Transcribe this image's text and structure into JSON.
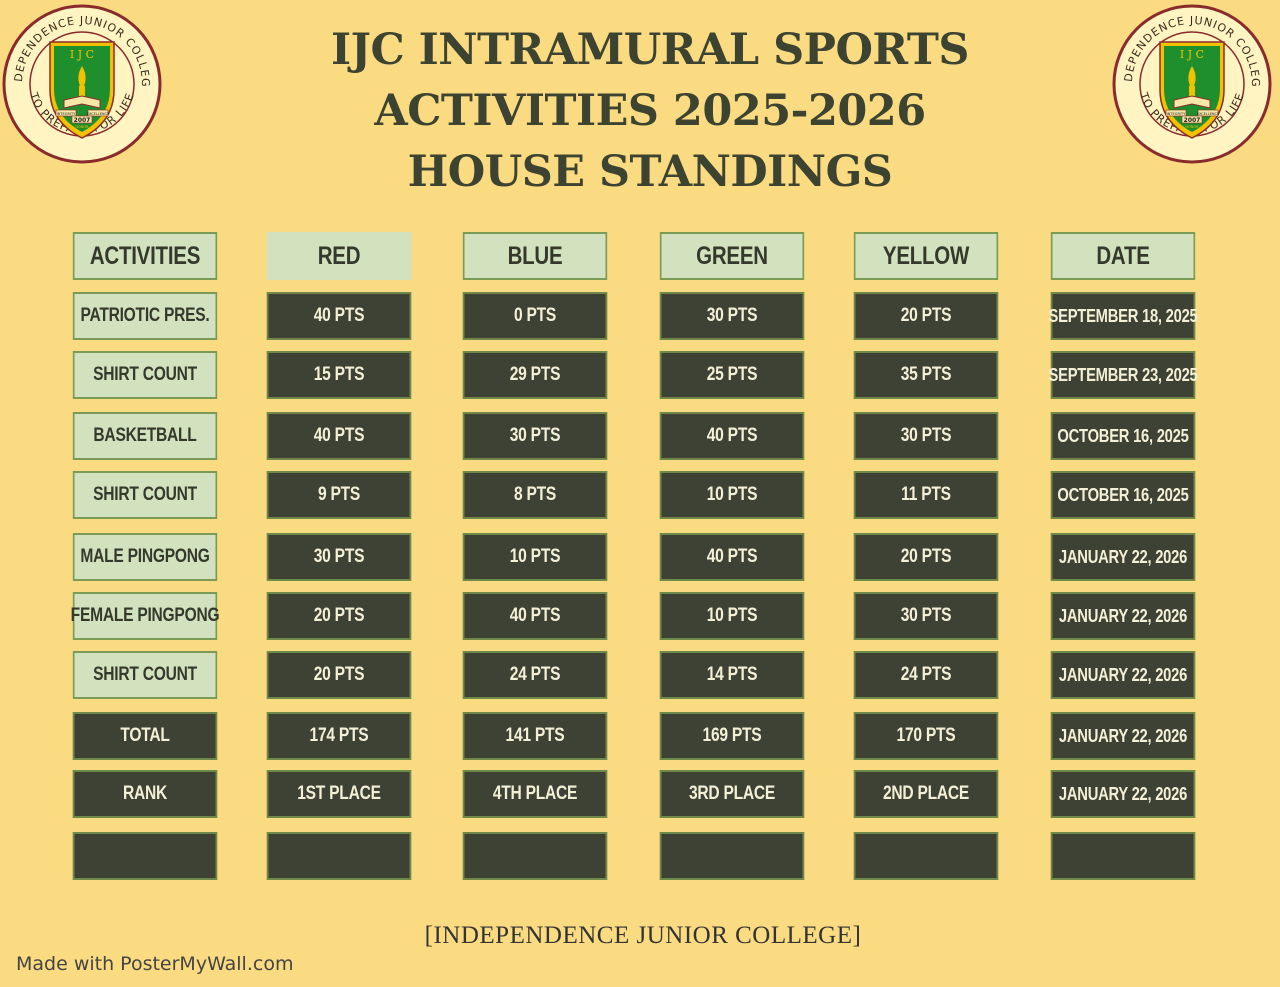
{
  "title": {
    "line1": "IJC INTRAMURAL SPORTS",
    "line2": "ACTIVITIES 2025-2026",
    "line3": "HOUSE STANDINGS"
  },
  "logo": {
    "ring_top": "INDEPENDENCE JUNIOR COLLEGE",
    "ring_bottom": "TO PREPARE FOR LIFE",
    "initials": "I J C",
    "year": "2007",
    "banner_left": "INTEGRITY",
    "banner_right": "EXCELLENCE",
    "banner_mid": "HONOR",
    "colors": {
      "ring": "#fff4c2",
      "outline": "#8a2b2b",
      "shield": "#1f8f2e",
      "accent": "#f2c200"
    }
  },
  "table": {
    "headers": [
      "ACTIVITIES",
      "RED",
      "BLUE",
      "GREEN",
      "YELLOW",
      "DATE"
    ],
    "rows": [
      [
        "PATRIOTIC PRES.",
        "40 PTS",
        "0 PTS",
        "30 PTS",
        "20 PTS",
        "SEPTEMBER 18, 2025"
      ],
      [
        "SHIRT COUNT",
        "15 PTS",
        "29 PTS",
        "25 PTS",
        "35 PTS",
        "SEPTEMBER 23, 2025"
      ],
      [
        "BASKETBALL",
        "40 PTS",
        "30 PTS",
        "40 PTS",
        "30 PTS",
        "OCTOBER 16, 2025"
      ],
      [
        "SHIRT COUNT",
        "9 PTS",
        "8 PTS",
        "10 PTS",
        "11 PTS",
        "OCTOBER 16, 2025"
      ],
      [
        "MALE PINGPONG",
        "30 PTS",
        "10 PTS",
        "40 PTS",
        "20 PTS",
        "JANUARY 22, 2026"
      ],
      [
        "FEMALE PINGPONG",
        "20 PTS",
        "40 PTS",
        "10 PTS",
        "30 PTS",
        "JANUARY 22, 2026"
      ],
      [
        "SHIRT COUNT",
        "20 PTS",
        "24 PTS",
        "14 PTS",
        "24 PTS",
        "JANUARY 22, 2026"
      ],
      [
        "TOTAL",
        "174  PTS",
        "141 PTS",
        "169 PTS",
        "170 PTS",
        "JANUARY 22, 2026"
      ],
      [
        "RANK",
        "1ST PLACE",
        "4TH PLACE",
        "3RD PLACE",
        "2ND PLACE",
        "JANUARY 22, 2026"
      ],
      [
        "",
        "",
        "",
        "",
        "",
        ""
      ]
    ]
  },
  "footer": "[INDEPENDENCE  JUNIOR  COLLEGE]",
  "made_with": "Made with PosterMyWall.com",
  "colors": {
    "background": "#fbdb81",
    "light_cell": "#d2e1be",
    "dark_cell": "#3e4235",
    "border": "#7b9b55"
  }
}
